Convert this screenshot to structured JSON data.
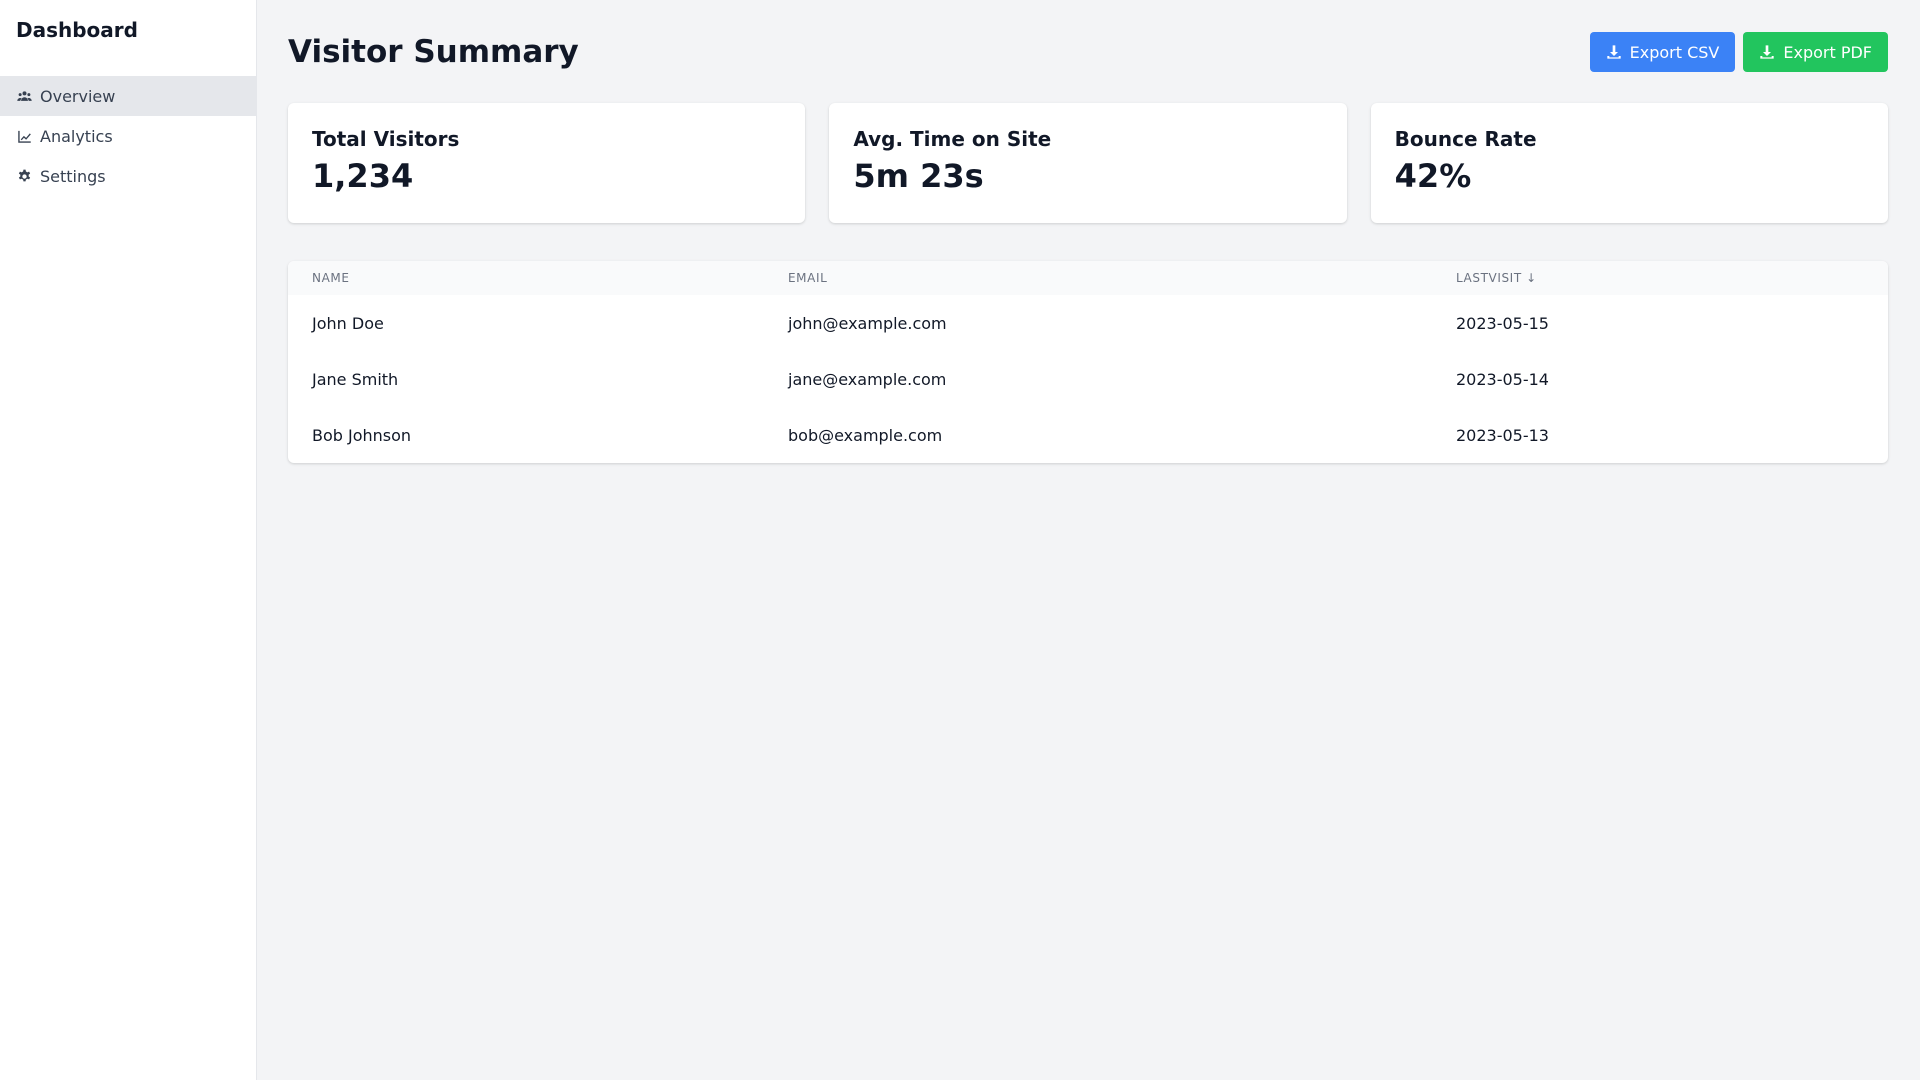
{
  "sidebar": {
    "brand": "Dashboard",
    "items": [
      {
        "label": "Overview",
        "icon": "users-icon",
        "active": true
      },
      {
        "label": "Analytics",
        "icon": "chart-line-icon",
        "active": false
      },
      {
        "label": "Settings",
        "icon": "gear-icon",
        "active": false
      }
    ]
  },
  "header": {
    "title": "Visitor Summary",
    "export_csv_label": "Export CSV",
    "export_pdf_label": "Export PDF"
  },
  "cards": [
    {
      "label": "Total Visitors",
      "value": "1,234"
    },
    {
      "label": "Avg. Time on Site",
      "value": "5m 23s"
    },
    {
      "label": "Bounce Rate",
      "value": "42%"
    }
  ],
  "table": {
    "columns": [
      "Name",
      "Email",
      "LastVisit ↓"
    ],
    "rows": [
      {
        "name": "John Doe",
        "email": "john@example.com",
        "last_visit": "2023-05-15"
      },
      {
        "name": "Jane Smith",
        "email": "jane@example.com",
        "last_visit": "2023-05-14"
      },
      {
        "name": "Bob Johnson",
        "email": "bob@example.com",
        "last_visit": "2023-05-13"
      }
    ]
  },
  "colors": {
    "primary_blue": "#3b82f6",
    "success_green": "#22c55e",
    "active_nav_bg": "#e5e7eb",
    "page_bg": "#f3f4f6"
  }
}
